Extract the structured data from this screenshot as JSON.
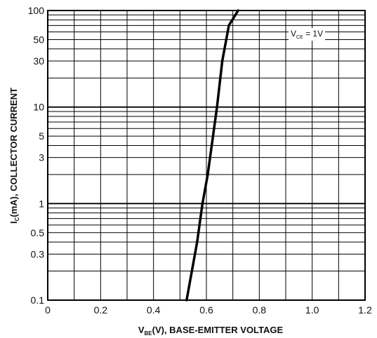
{
  "chart_data": {
    "type": "line",
    "x_axis": {
      "label_main": "V",
      "label_sub": "BE",
      "label_rest": "(V), BASE-EMITTER VOLTAGE",
      "min": 0,
      "max": 1.2,
      "scale": "linear",
      "ticks": [
        {
          "value": 0,
          "label": "0"
        },
        {
          "value": 0.2,
          "label": "0.2"
        },
        {
          "value": 0.4,
          "label": "0.4"
        },
        {
          "value": 0.6,
          "label": "0.6"
        },
        {
          "value": 0.8,
          "label": "0.8"
        },
        {
          "value": 1.0,
          "label": "1.0"
        },
        {
          "value": 1.2,
          "label": "1.2"
        }
      ]
    },
    "y_axis": {
      "label_main": "I",
      "label_sub": "C",
      "label_rest": "(mA), COLLECTOR CURRENT",
      "min": 0.1,
      "max": 100,
      "scale": "log",
      "ticks": [
        {
          "value": 0.1,
          "label": "0.1"
        },
        {
          "value": 0.3,
          "label": "0.3"
        },
        {
          "value": 0.5,
          "label": "0.5"
        },
        {
          "value": 1,
          "label": "1"
        },
        {
          "value": 3,
          "label": "3"
        },
        {
          "value": 5,
          "label": "5"
        },
        {
          "value": 10,
          "label": "10"
        },
        {
          "value": 30,
          "label": "30"
        },
        {
          "value": 50,
          "label": "50"
        },
        {
          "value": 100,
          "label": "100"
        }
      ]
    },
    "grid": true,
    "x_grid_step": 0.1,
    "annotation": {
      "main": "V",
      "sub": "CE",
      "rest": " = 1V"
    },
    "series": [
      {
        "points": [
          {
            "x": 0.525,
            "y": 0.1
          },
          {
            "x": 0.545,
            "y": 0.2
          },
          {
            "x": 0.565,
            "y": 0.4
          },
          {
            "x": 0.585,
            "y": 1
          },
          {
            "x": 0.605,
            "y": 2
          },
          {
            "x": 0.625,
            "y": 5
          },
          {
            "x": 0.64,
            "y": 10
          },
          {
            "x": 0.66,
            "y": 30
          },
          {
            "x": 0.685,
            "y": 70
          },
          {
            "x": 0.72,
            "y": 100
          }
        ]
      }
    ]
  }
}
